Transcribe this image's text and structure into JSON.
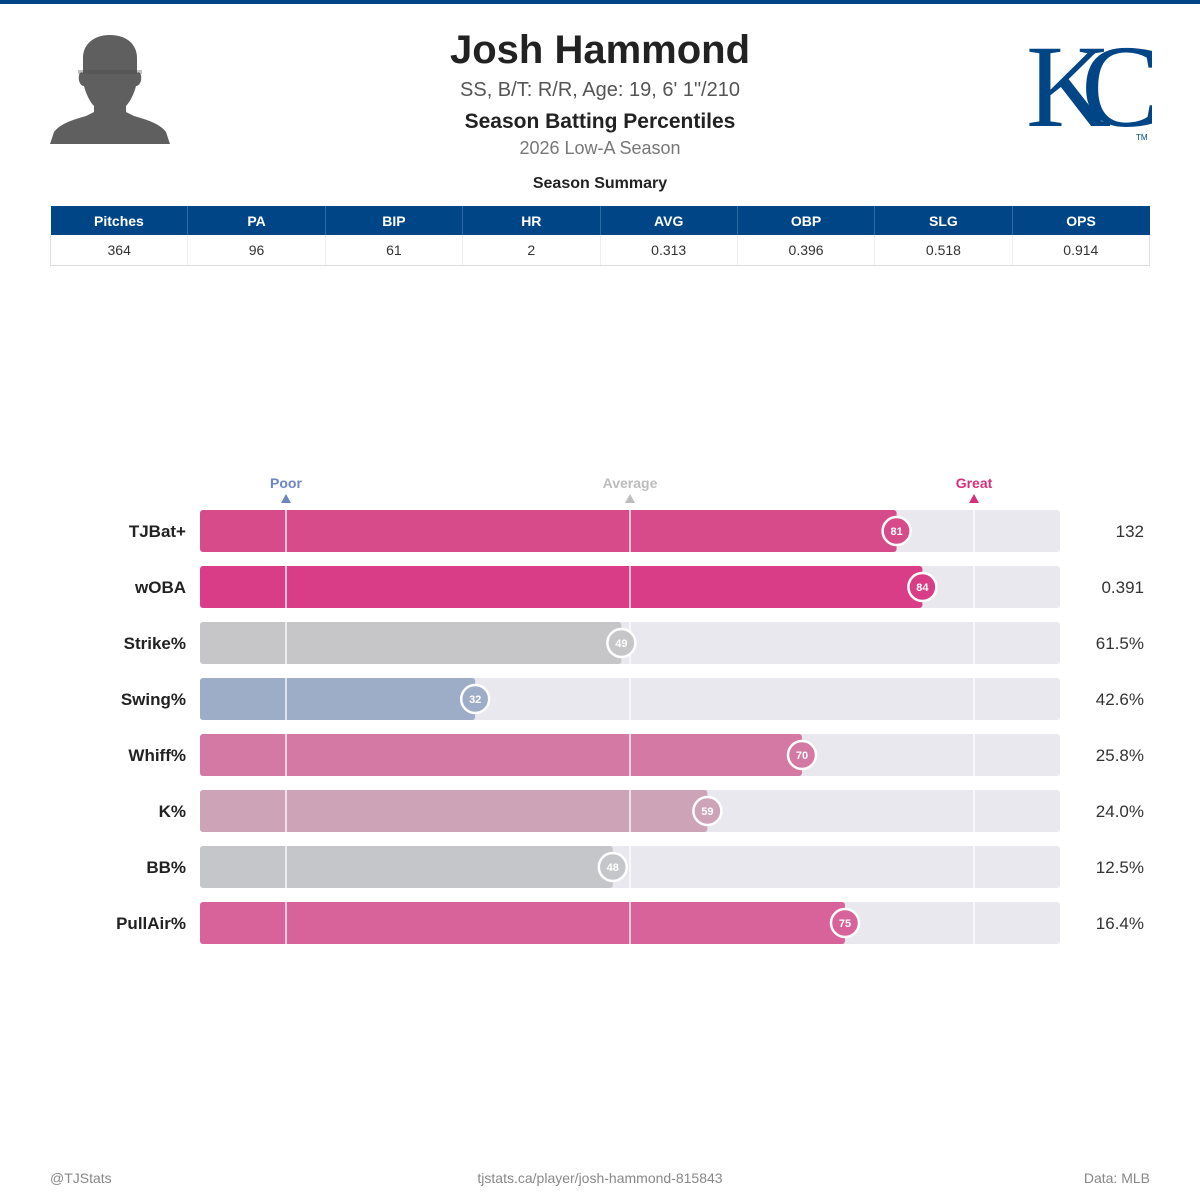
{
  "header": {
    "name": "Josh Hammond",
    "info": "SS, B/T: R/R, Age: 19, 6' 1\"/210",
    "title": "Season Batting Percentiles",
    "season": "2026 Low-A Season"
  },
  "logo": {
    "team_text": "KC",
    "trademark": "TM",
    "color": "#004687"
  },
  "summary": {
    "title": "Season Summary",
    "headers": [
      "Pitches",
      "PA",
      "BIP",
      "HR",
      "AVG",
      "OBP",
      "SLG",
      "OPS"
    ],
    "values": [
      "364",
      "96",
      "61",
      "2",
      "0.313",
      "0.396",
      "0.518",
      "0.914"
    ],
    "header_color": "#004687"
  },
  "chart_data": {
    "type": "bar",
    "orientation": "horizontal",
    "xlim": [
      0,
      100
    ],
    "reference_markers": [
      {
        "label": "Poor",
        "value": 10,
        "color": "#6b86c0"
      },
      {
        "label": "Average",
        "value": 50,
        "color": "#bdbdbd"
      },
      {
        "label": "Great",
        "value": 90,
        "color": "#d6307a"
      }
    ],
    "categories": [
      "TJBat+",
      "wOBA",
      "Strike%",
      "Swing%",
      "Whiff%",
      "K%",
      "BB%",
      "PullAir%"
    ],
    "values": [
      81,
      84,
      49,
      32,
      70,
      59,
      48,
      75
    ],
    "stat_values": [
      "132",
      "0.391",
      "61.5%",
      "42.6%",
      "25.8%",
      "24.0%",
      "12.5%",
      "16.4%"
    ],
    "colors": [
      "#d84b8a",
      "#da3d87",
      "#c6c6c8",
      "#9dacc7",
      "#d479a3",
      "#cda3b8",
      "#c5c6c9",
      "#d8639a"
    ],
    "track_color": "#e8e8ee"
  },
  "footer": {
    "left": "@TJStats",
    "center": "tjstats.ca/player/josh-hammond-815843",
    "right": "Data: MLB"
  }
}
